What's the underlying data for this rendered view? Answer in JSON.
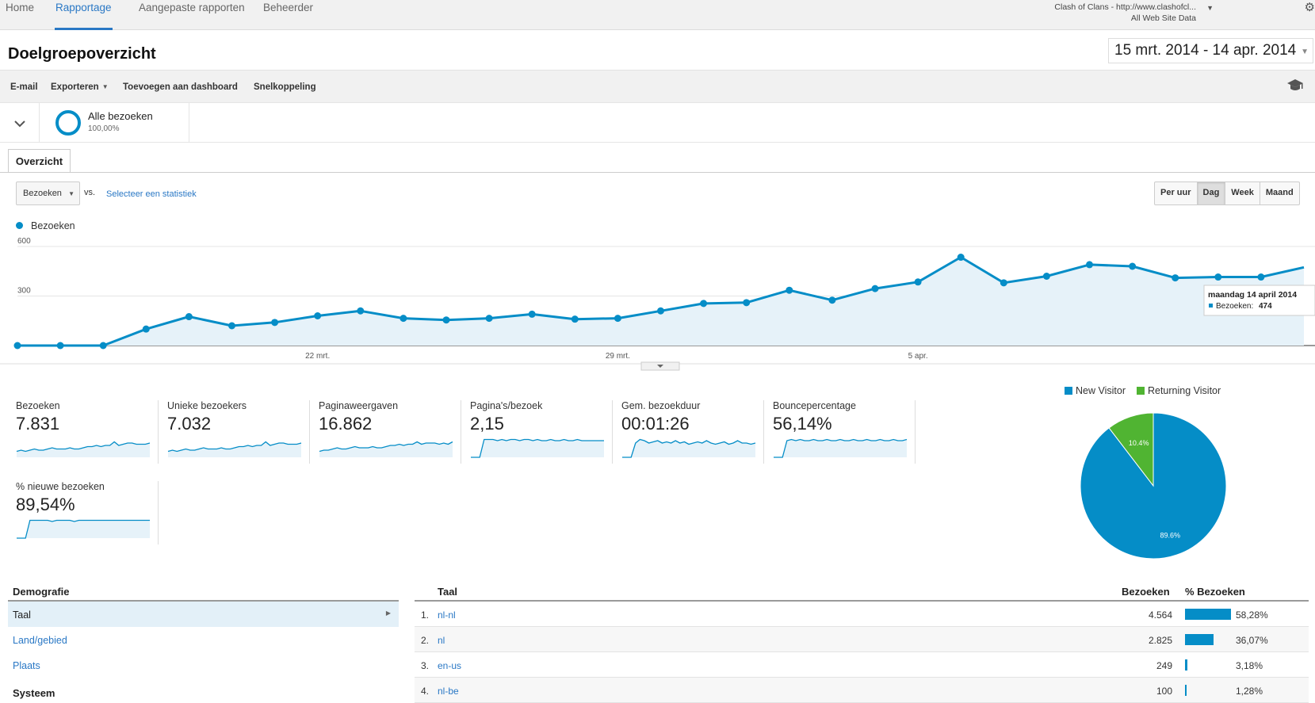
{
  "nav": {
    "tabs": [
      {
        "label": "Home"
      },
      {
        "label": "Rapportage"
      },
      {
        "label": "Aangepaste rapporten"
      },
      {
        "label": "Beheerder"
      }
    ],
    "property_name": "Clash of Clans - http://www.clashofcl...",
    "property_view": "All Web Site Data"
  },
  "header": {
    "title": "Doelgroepoverzicht",
    "date_range": "15 mrt. 2014 - 14 apr. 2014"
  },
  "actions": {
    "email": "E-mail",
    "export": "Exporteren",
    "add_dashboard": "Toevoegen aan dashboard",
    "shortcut": "Snelkoppeling"
  },
  "segment": {
    "name": "Alle bezoeken",
    "percent": "100,00%"
  },
  "tab": {
    "label": "Overzicht"
  },
  "controls": {
    "metric": "Bezoeken",
    "vs": "vs.",
    "select_stat": "Selecteer een statistiek",
    "granularity": [
      "Per uur",
      "Dag",
      "Week",
      "Maand"
    ],
    "active_granularity": "Dag"
  },
  "chart_data": {
    "type": "area",
    "series_name": "Bezoeken",
    "ylim": [
      0,
      600
    ],
    "y_ticks": [
      "600",
      "300"
    ],
    "x_tick_labels": [
      "22 mrt.",
      "29 mrt.",
      "5 apr."
    ],
    "x_tick_index": [
      7,
      14,
      21
    ],
    "values": [
      0,
      0,
      0,
      100,
      175,
      120,
      140,
      180,
      210,
      165,
      155,
      165,
      190,
      160,
      165,
      210,
      255,
      260,
      335,
      275,
      345,
      385,
      535,
      380,
      420,
      490,
      480,
      410,
      415,
      415,
      474
    ],
    "color": "#058dc7",
    "tooltip": {
      "date": "maandag 14 april 2014",
      "label": "Bezoeken:",
      "value": "474"
    }
  },
  "scorecards": [
    {
      "label": "Bezoeken",
      "value": "7.831",
      "spark": [
        5,
        6,
        5,
        6,
        7,
        6,
        6,
        7,
        8,
        7,
        7,
        7,
        8,
        7,
        7,
        8,
        9,
        9,
        10,
        9,
        10,
        10,
        13,
        10,
        11,
        12,
        12,
        11,
        11,
        11,
        12
      ]
    },
    {
      "label": "Unieke bezoekers",
      "value": "7.032",
      "spark": [
        5,
        6,
        5,
        6,
        7,
        6,
        6,
        7,
        8,
        7,
        7,
        7,
        8,
        7,
        7,
        8,
        9,
        9,
        10,
        9,
        10,
        10,
        13,
        10,
        11,
        12,
        12,
        11,
        11,
        11,
        12
      ]
    },
    {
      "label": "Paginaweergaven",
      "value": "16.862",
      "spark": [
        5,
        6,
        6,
        7,
        8,
        7,
        7,
        8,
        9,
        8,
        8,
        8,
        9,
        8,
        8,
        9,
        10,
        10,
        11,
        10,
        11,
        11,
        13,
        11,
        12,
        12,
        12,
        11,
        12,
        11,
        13
      ]
    },
    {
      "label": "Pagina's/bezoek",
      "value": "2,15",
      "spark": [
        0,
        0,
        0,
        15,
        15,
        15,
        14,
        15,
        14,
        15,
        15,
        14,
        15,
        15,
        14,
        15,
        14,
        14,
        15,
        14,
        14,
        15,
        14,
        14,
        15,
        14,
        14,
        14,
        14,
        14,
        14
      ]
    },
    {
      "label": "Gem. bezoekduur",
      "value": "00:01:26",
      "spark": [
        0,
        0,
        0,
        12,
        15,
        14,
        12,
        13,
        14,
        12,
        13,
        12,
        14,
        12,
        13,
        11,
        12,
        13,
        12,
        14,
        12,
        11,
        12,
        13,
        11,
        12,
        14,
        12,
        12,
        11,
        12
      ]
    },
    {
      "label": "Bouncepercentage",
      "value": "56,14%",
      "spark": [
        0,
        0,
        0,
        14,
        15,
        14,
        15,
        14,
        14,
        15,
        14,
        14,
        15,
        14,
        14,
        15,
        14,
        14,
        15,
        14,
        14,
        15,
        14,
        14,
        15,
        14,
        14,
        15,
        14,
        14,
        15
      ]
    },
    {
      "label": "% nieuwe bezoeken",
      "value": "89,54%",
      "spark": [
        0,
        0,
        0,
        15,
        15,
        15,
        15,
        15,
        14,
        15,
        15,
        15,
        15,
        14,
        15,
        15,
        15,
        15,
        15,
        15,
        15,
        15,
        15,
        15,
        15,
        15,
        15,
        15,
        15,
        15,
        15
      ]
    }
  ],
  "pie": {
    "legend": [
      {
        "name": "New Visitor",
        "color": "#058dc7"
      },
      {
        "name": "Returning Visitor",
        "color": "#50b432"
      }
    ],
    "slices": [
      {
        "name": "New Visitor",
        "value": 89.6,
        "label": "89.6%"
      },
      {
        "name": "Returning Visitor",
        "value": 10.4,
        "label": "10.4%"
      }
    ]
  },
  "demographics": {
    "heading": "Demografie",
    "items": [
      "Taal",
      "Land/gebied",
      "Plaats"
    ],
    "active": "Taal",
    "system_heading": "Systeem"
  },
  "table": {
    "columns": {
      "dimension": "Taal",
      "visits": "Bezoeken",
      "pct": "% Bezoeken"
    },
    "rows": [
      {
        "idx": "1.",
        "lang": "nl-nl",
        "visits": "4.564",
        "pct": "58,28%",
        "share": 58.28
      },
      {
        "idx": "2.",
        "lang": "nl",
        "visits": "2.825",
        "pct": "36,07%",
        "share": 36.07
      },
      {
        "idx": "3.",
        "lang": "en-us",
        "visits": "249",
        "pct": "3,18%",
        "share": 3.18
      },
      {
        "idx": "4.",
        "lang": "nl-be",
        "visits": "100",
        "pct": "1,28%",
        "share": 1.28
      }
    ]
  }
}
